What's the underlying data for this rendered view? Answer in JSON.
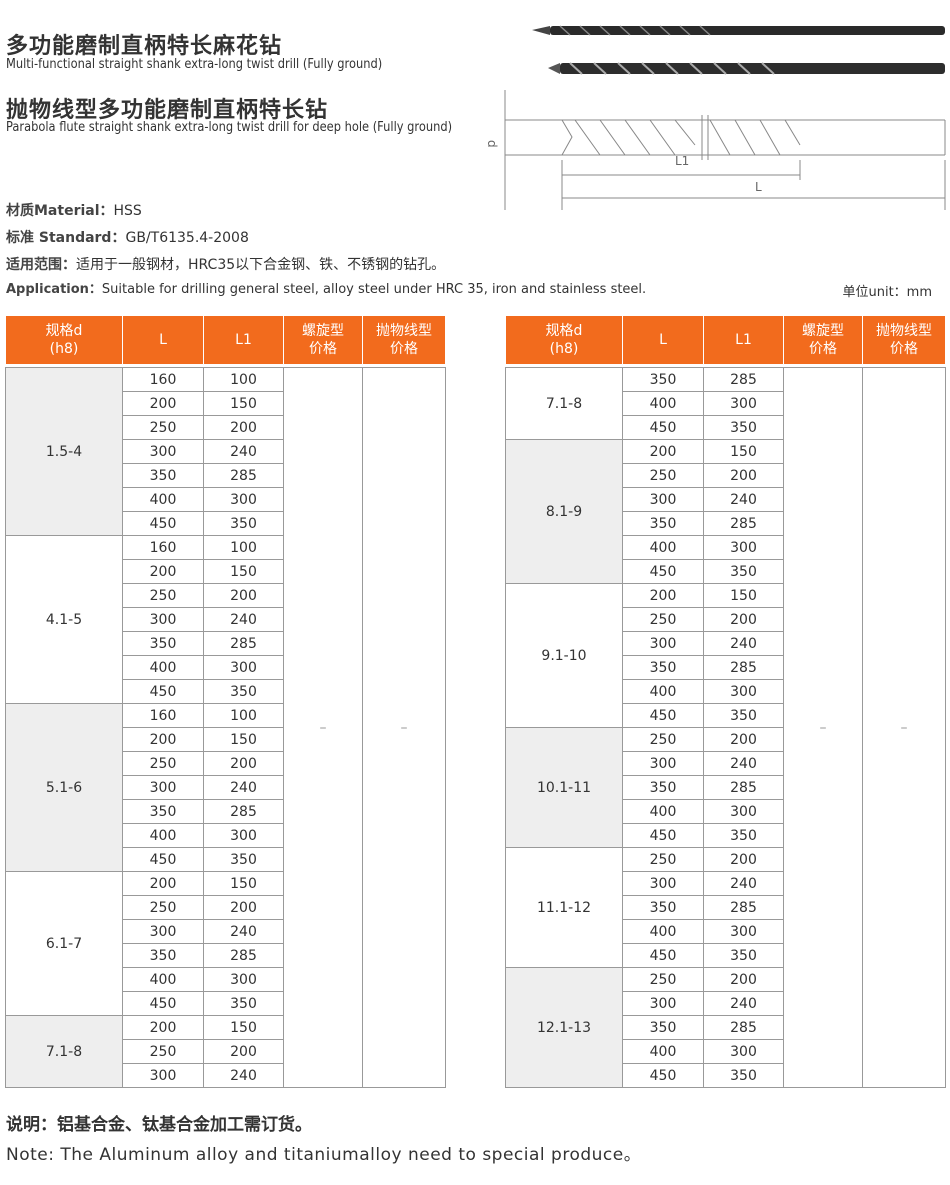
{
  "header": {
    "title_cn_1": "多功能磨制直柄特长麻花钻",
    "title_en_1": "Multi-functional straight shank extra-long twist drill (Fully ground)",
    "title_cn_2": "抛物线型多功能磨制直柄特长钻",
    "title_en_2": "Parabola flute straight shank extra-long twist drill for deep hole (Fully ground)"
  },
  "diagram": {
    "d": "d",
    "l1": "L1",
    "l": "L"
  },
  "specs": [
    {
      "label": "材质Material：",
      "value": "HSS"
    },
    {
      "label": "标准 Standard：",
      "value": "GB/T6135.4-2008"
    },
    {
      "label": "适用范围：",
      "value": "适用于一般钢材，HRC35以下合金钢、铁、不锈钢的钻孔。"
    },
    {
      "label": "Application：",
      "value": "Suitable for drilling general steel, alloy steel under HRC 35, iron and stainless steel."
    }
  ],
  "unit": "单位unit：mm",
  "table_headers": [
    "规格d\n(h8)",
    "L",
    "L1",
    "螺旋型\n价格",
    "抛物线型\n价格"
  ],
  "tables": [
    {
      "price_spiral": "–",
      "price_parabola": "–",
      "groups": [
        {
          "size": "1.5-4",
          "rows": [
            [
              160,
              100
            ],
            [
              200,
              150
            ],
            [
              250,
              200
            ],
            [
              300,
              240
            ],
            [
              350,
              285
            ],
            [
              400,
              300
            ],
            [
              450,
              350
            ]
          ]
        },
        {
          "size": "4.1-5",
          "rows": [
            [
              160,
              100
            ],
            [
              200,
              150
            ],
            [
              250,
              200
            ],
            [
              300,
              240
            ],
            [
              350,
              285
            ],
            [
              400,
              300
            ],
            [
              450,
              350
            ]
          ]
        },
        {
          "size": "5.1-6",
          "rows": [
            [
              160,
              100
            ],
            [
              200,
              150
            ],
            [
              250,
              200
            ],
            [
              300,
              240
            ],
            [
              350,
              285
            ],
            [
              400,
              300
            ],
            [
              450,
              350
            ]
          ]
        },
        {
          "size": "6.1-7",
          "rows": [
            [
              200,
              150
            ],
            [
              250,
              200
            ],
            [
              300,
              240
            ],
            [
              350,
              285
            ],
            [
              400,
              300
            ],
            [
              450,
              350
            ]
          ]
        },
        {
          "size": "7.1-8",
          "rows": [
            [
              200,
              150
            ],
            [
              250,
              200
            ],
            [
              300,
              240
            ]
          ]
        }
      ]
    },
    {
      "price_spiral": "–",
      "price_parabola": "–",
      "groups": [
        {
          "size": "7.1-8",
          "rows": [
            [
              350,
              285
            ],
            [
              400,
              300
            ],
            [
              450,
              350
            ]
          ]
        },
        {
          "size": "8.1-9",
          "rows": [
            [
              200,
              150
            ],
            [
              250,
              200
            ],
            [
              300,
              240
            ],
            [
              350,
              285
            ],
            [
              400,
              300
            ],
            [
              450,
              350
            ]
          ]
        },
        {
          "size": "9.1-10",
          "rows": [
            [
              200,
              150
            ],
            [
              250,
              200
            ],
            [
              300,
              240
            ],
            [
              350,
              285
            ],
            [
              400,
              300
            ],
            [
              450,
              350
            ]
          ]
        },
        {
          "size": "10.1-11",
          "rows": [
            [
              250,
              200
            ],
            [
              300,
              240
            ],
            [
              350,
              285
            ],
            [
              400,
              300
            ],
            [
              450,
              350
            ]
          ]
        },
        {
          "size": "11.1-12",
          "rows": [
            [
              250,
              200
            ],
            [
              300,
              240
            ],
            [
              350,
              285
            ],
            [
              400,
              300
            ],
            [
              450,
              350
            ]
          ]
        },
        {
          "size": "12.1-13",
          "rows": [
            [
              250,
              200
            ],
            [
              300,
              240
            ],
            [
              350,
              285
            ],
            [
              400,
              300
            ],
            [
              450,
              350
            ]
          ]
        }
      ]
    }
  ],
  "note": {
    "cn": "说明：铝基合金、钛基合金加工需订货。",
    "en": "Note: The Aluminum alloy and titaniumalloy need to special produce。"
  }
}
